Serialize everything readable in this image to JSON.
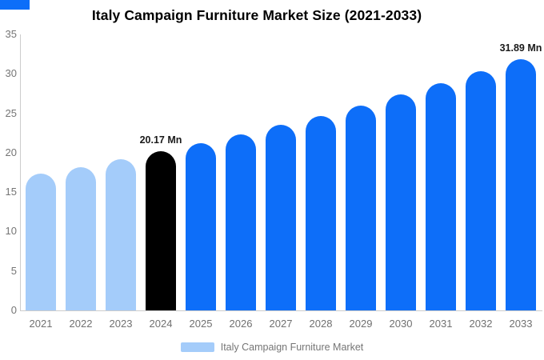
{
  "title": "Italy Campaign Furniture Market Size (2021-2033)",
  "colors": {
    "primary_blue": "#0D6EF9",
    "light_blue": "#A4CCFA",
    "black_bar": "#000000",
    "axis_line": "#cccccc",
    "tick_text": "#757575",
    "value_label_text": "#1a1a1a"
  },
  "chart_data": {
    "type": "bar",
    "title": "Italy Campaign Furniture Market Size (2021-2033)",
    "unit": "Mn",
    "categories": [
      "2021",
      "2022",
      "2023",
      "2024",
      "2025",
      "2026",
      "2027",
      "2028",
      "2029",
      "2030",
      "2031",
      "2032",
      "2033"
    ],
    "values": [
      17.3,
      18.2,
      19.2,
      20.17,
      21.2,
      22.3,
      23.5,
      24.7,
      26.0,
      27.4,
      28.8,
      30.3,
      31.89
    ],
    "bar_colors": [
      "#A4CCFA",
      "#A4CCFA",
      "#A4CCFA",
      "#000000",
      "#0D6EF9",
      "#0D6EF9",
      "#0D6EF9",
      "#0D6EF9",
      "#0D6EF9",
      "#0D6EF9",
      "#0D6EF9",
      "#0D6EF9",
      "#0D6EF9"
    ],
    "xlabel": "",
    "ylabel": "",
    "ylim": [
      0,
      35
    ],
    "yticks": [
      0,
      5,
      10,
      15,
      20,
      25,
      30,
      35
    ],
    "grid": false,
    "annotations": [
      {
        "category": "2024",
        "text": "20.17 Mn"
      },
      {
        "category": "2033",
        "text": "31.89 Mn"
      }
    ],
    "legend": {
      "position": "bottom",
      "label": "Italy Campaign Furniture Market",
      "swatch_color": "#A4CCFA"
    }
  }
}
